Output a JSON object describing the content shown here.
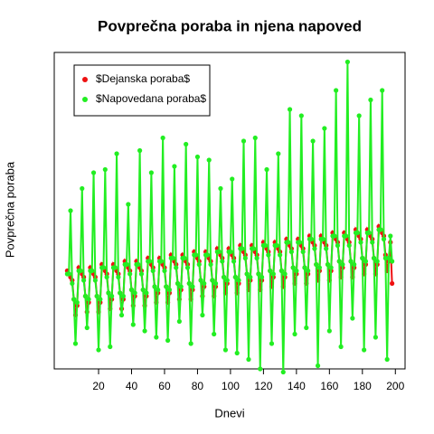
{
  "chart_data": {
    "type": "line",
    "title": "Povprečna poraba in njena napoved",
    "xlabel": "Dnevi",
    "ylabel": "Povprečna poraba",
    "x": [
      1,
      2,
      3,
      4,
      5,
      6,
      7,
      8,
      9,
      10,
      11,
      12,
      13,
      14,
      15,
      16,
      17,
      18,
      19,
      20,
      21,
      22,
      23,
      24,
      25,
      26,
      27,
      28,
      29,
      30,
      31,
      32,
      33,
      34,
      35,
      36,
      37,
      38,
      39,
      40,
      41,
      42,
      43,
      44,
      45,
      46,
      47,
      48,
      49,
      50,
      51,
      52,
      53,
      54,
      55,
      56,
      57,
      58,
      59,
      60,
      61,
      62,
      63,
      64,
      65,
      66,
      67,
      68,
      69,
      70,
      71,
      72,
      73,
      74,
      75,
      76,
      77,
      78,
      79,
      80,
      81,
      82,
      83,
      84,
      85,
      86,
      87,
      88,
      89,
      90,
      91,
      92,
      93,
      94,
      95,
      96,
      97,
      98,
      99,
      100,
      101,
      102,
      103,
      104,
      105,
      106,
      107,
      108,
      109,
      110,
      111,
      112,
      113,
      114,
      115,
      116,
      117,
      118,
      119,
      120,
      121,
      122,
      123,
      124,
      125,
      126,
      127,
      128,
      129,
      130,
      131,
      132,
      133,
      134,
      135,
      136,
      137,
      138,
      139,
      140,
      141,
      142,
      143,
      144,
      145,
      146,
      147,
      148,
      149,
      150,
      151,
      152,
      153,
      154,
      155,
      156,
      157,
      158,
      159,
      160,
      161,
      162,
      163,
      164,
      165,
      166,
      167,
      168,
      169,
      170,
      171,
      172,
      173,
      174,
      175,
      176,
      177,
      178,
      179,
      180,
      181,
      182,
      183,
      184,
      185,
      186,
      187,
      188,
      189,
      190,
      191,
      192,
      193,
      194,
      195,
      196,
      197,
      198
    ],
    "series": [
      {
        "name": "$Dejanska poraba$",
        "color": "#ee1111",
        "values": [
          31,
          30,
          29,
          28,
          22,
          17,
          20,
          32,
          31,
          30,
          29,
          23,
          18,
          21,
          32,
          31,
          30,
          29,
          23,
          18,
          21,
          33,
          32,
          31,
          30,
          24,
          19,
          22,
          33,
          32,
          31,
          30,
          24,
          19,
          22,
          34,
          33,
          32,
          31,
          25,
          20,
          23,
          34,
          33,
          32,
          31,
          25,
          20,
          23,
          35,
          34,
          33,
          32,
          26,
          21,
          24,
          35,
          34,
          33,
          32,
          26,
          21,
          24,
          36,
          35,
          34,
          33,
          27,
          22,
          25,
          36,
          35,
          34,
          33,
          27,
          22,
          25,
          37,
          36,
          35,
          34,
          28,
          23,
          26,
          37,
          36,
          35,
          34,
          28,
          23,
          26,
          38,
          37,
          36,
          35,
          29,
          24,
          27,
          38,
          37,
          36,
          35,
          29,
          24,
          27,
          39,
          38,
          37,
          36,
          30,
          25,
          28,
          39,
          38,
          37,
          36,
          30,
          25,
          28,
          40,
          39,
          38,
          37,
          31,
          26,
          29,
          40,
          39,
          38,
          37,
          31,
          26,
          29,
          41,
          40,
          39,
          38,
          32,
          27,
          30,
          41,
          40,
          39,
          38,
          32,
          27,
          30,
          42,
          41,
          40,
          39,
          33,
          28,
          31,
          42,
          41,
          40,
          39,
          33,
          28,
          31,
          43,
          42,
          41,
          40,
          34,
          29,
          32,
          43,
          42,
          41,
          40,
          34,
          29,
          32,
          44,
          43,
          42,
          41,
          35,
          30,
          33,
          44,
          43,
          42,
          41,
          35,
          30,
          33,
          45,
          44,
          43,
          42,
          36,
          31,
          34,
          40,
          27
        ]
      },
      {
        "name": "$Napovedana poraba$",
        "color": "#22ee22",
        "values": [
          30,
          30,
          50,
          27,
          22,
          8,
          21,
          31,
          31,
          57,
          28,
          23,
          13,
          22,
          31,
          31,
          62,
          28,
          23,
          6,
          22,
          32,
          32,
          63,
          29,
          24,
          7,
          23,
          32,
          32,
          68,
          29,
          24,
          17,
          23,
          33,
          33,
          52,
          30,
          25,
          14,
          24,
          33,
          33,
          69,
          30,
          25,
          12,
          24,
          34,
          34,
          62,
          31,
          26,
          10,
          25,
          34,
          34,
          73,
          31,
          26,
          9,
          25,
          35,
          35,
          64,
          32,
          27,
          15,
          26,
          35,
          35,
          71,
          32,
          27,
          8,
          26,
          36,
          36,
          67,
          33,
          28,
          17,
          27,
          36,
          36,
          66,
          33,
          28,
          11,
          27,
          37,
          37,
          57,
          34,
          29,
          6,
          28,
          37,
          37,
          60,
          34,
          29,
          5,
          28,
          38,
          38,
          72,
          35,
          30,
          3,
          29,
          38,
          38,
          73,
          35,
          30,
          0,
          29,
          39,
          39,
          63,
          36,
          31,
          8,
          30,
          39,
          39,
          68,
          36,
          31,
          -1,
          30,
          40,
          40,
          82,
          37,
          32,
          11,
          31,
          40,
          40,
          80,
          37,
          32,
          13,
          31,
          41,
          41,
          72,
          38,
          33,
          1,
          32,
          41,
          41,
          76,
          38,
          33,
          12,
          32,
          42,
          42,
          88,
          39,
          34,
          7,
          33,
          42,
          42,
          97,
          39,
          34,
          16,
          33,
          43,
          43,
          80,
          40,
          35,
          6,
          34,
          43,
          43,
          85,
          40,
          35,
          10,
          34,
          44,
          44,
          88,
          41,
          35,
          3,
          35,
          42,
          34
        ]
      }
    ],
    "xlim": [
      -6.88,
      205.88
    ],
    "xticks": [
      20,
      40,
      60,
      80,
      100,
      120,
      140,
      160,
      180,
      200
    ],
    "ylim": [
      0,
      100
    ],
    "legend": "top-left"
  }
}
